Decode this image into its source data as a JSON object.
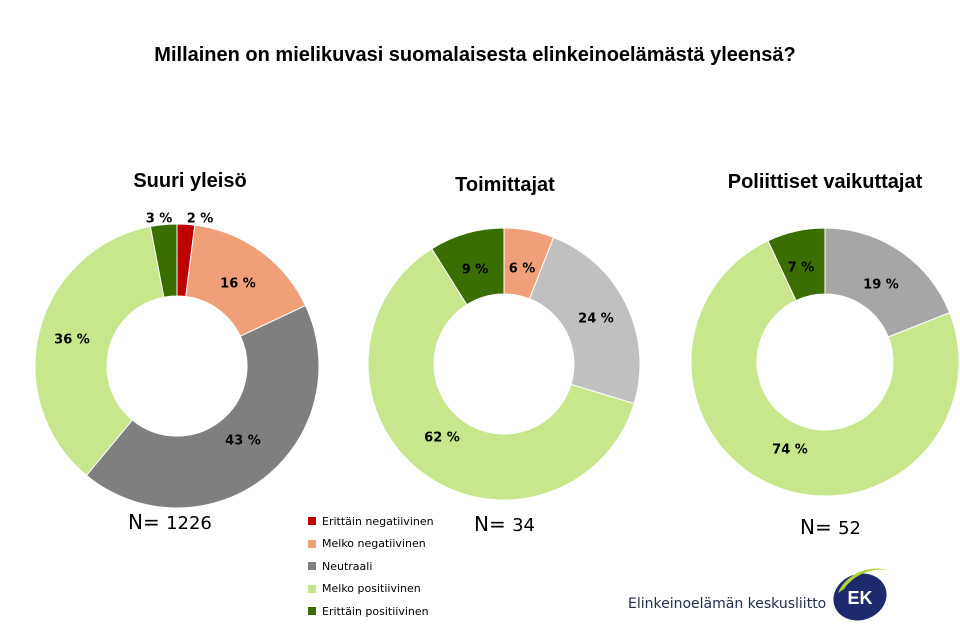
{
  "title": "Millainen on mielikuvasi suomalaisesta elinkeinoelämästä yleensä?",
  "legend": [
    {
      "label": "Erittäin negatiivinen",
      "color": "#c00000"
    },
    {
      "label": "Melko negatiivinen",
      "color": "#f0a078"
    },
    {
      "label": "Neutraali",
      "color": "#7f7f7f"
    },
    {
      "label": "Melko positiivinen",
      "color": "#c8e68c"
    },
    {
      "label": "Erittäin positiivinen",
      "color": "#3a6e00"
    }
  ],
  "chart_data": [
    {
      "type": "pie",
      "title": "Suuri yleisö",
      "n_label": "N=",
      "n_value": "1226",
      "categories": [
        "Erittäin negatiivinen",
        "Melko negatiivinen",
        "Neutraali",
        "Melko positiivinen",
        "Erittäin positiivinen"
      ],
      "values": [
        2,
        16,
        43,
        36,
        3
      ],
      "labels": [
        "2 %",
        "16 %",
        "43 %",
        "36 %",
        "3 %"
      ],
      "colors": [
        "#c00000",
        "#f0a078",
        "#7f7f7f",
        "#c8e68c",
        "#3a6e00"
      ]
    },
    {
      "type": "pie",
      "title": "Toimittajat",
      "n_label": "N=",
      "n_value": "34",
      "categories": [
        "Melko negatiivinen",
        "Neutraali",
        "Melko positiivinen",
        "Erittäin positiivinen"
      ],
      "values": [
        6,
        24,
        62,
        9
      ],
      "labels": [
        "6 %",
        "24 %",
        "62 %",
        "9 %"
      ],
      "colors": [
        "#f0a078",
        "#c0c0c0",
        "#c8e68c",
        "#3a6e00"
      ]
    },
    {
      "type": "pie",
      "title": "Poliittiset vaikuttajat",
      "n_label": "N=",
      "n_value": "52",
      "categories": [
        "Neutraali",
        "Melko positiivinen",
        "Erittäin positiivinen"
      ],
      "values": [
        19,
        74,
        7
      ],
      "labels": [
        "19 %",
        "74 %",
        "7 %"
      ],
      "colors": [
        "#a6a6a6",
        "#c8e68c",
        "#3a6e00"
      ]
    }
  ],
  "logo": {
    "text": "Elinkeinoelämän keskusliitto",
    "mark": "EK"
  }
}
